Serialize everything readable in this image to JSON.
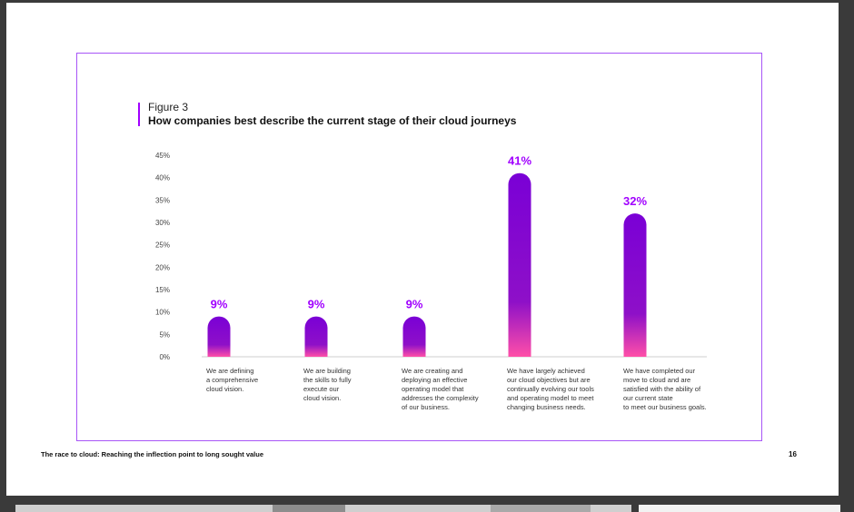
{
  "figure": {
    "label": "Figure 3",
    "title": "How companies best describe the current stage of their cloud journeys"
  },
  "footer": {
    "left": "The race to cloud:  Reaching the inflection point to long sought value",
    "page_number": "16"
  },
  "colors": {
    "bar_top": "#7a00d6",
    "bar_bottom": "#ff4fa8",
    "value_label": "#a100ff",
    "frame": "#a855f7"
  },
  "chart_data": {
    "type": "bar",
    "title": "How companies best describe the current stage of their cloud journeys",
    "xlabel": "",
    "ylabel": "",
    "ylim": [
      0,
      45
    ],
    "yticks": [
      "0%",
      "5%",
      "10%",
      "15%",
      "20%",
      "25%",
      "30%",
      "35%",
      "40%",
      "45%"
    ],
    "categories": [
      [
        "We are defining",
        "a comprehensive",
        "cloud vision."
      ],
      [
        "We are building",
        "the skills to fully",
        "execute our",
        "cloud vision."
      ],
      [
        "We are creating and",
        "deploying an effective",
        "operating model that",
        "addresses the complexity",
        "of our business."
      ],
      [
        "We have largely achieved",
        "our cloud objectives but are",
        "continually evolving our tools",
        "and operating model to meet",
        "changing business needs."
      ],
      [
        "We have completed our",
        "move to cloud and are",
        "satisfied with the ability of",
        "our current state",
        "to meet our business goals."
      ]
    ],
    "values": [
      9,
      9,
      9,
      41,
      32
    ],
    "value_labels": [
      "9%",
      "9%",
      "9%",
      "41%",
      "32%"
    ]
  }
}
